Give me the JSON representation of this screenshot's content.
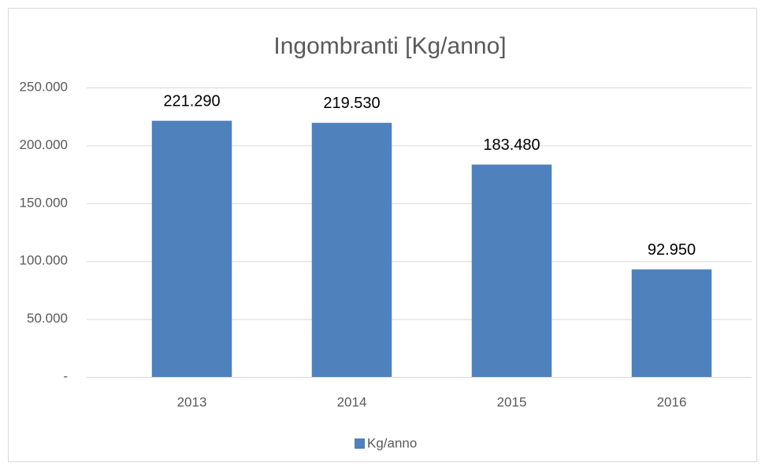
{
  "chart_data": {
    "type": "bar",
    "title": "Ingombranti [Kg/anno]",
    "categories": [
      "2013",
      "2014",
      "2015",
      "2016"
    ],
    "series": [
      {
        "name": "Kg/anno",
        "color": "#4f81bd",
        "values": [
          221290,
          219530,
          183480,
          92950
        ],
        "value_labels": [
          "221.290",
          "219.530",
          "183.480",
          "92.950"
        ]
      }
    ],
    "ylim": [
      0,
      250000
    ],
    "yticks": [
      {
        "value": 0,
        "label": "-"
      },
      {
        "value": 50000,
        "label": "50.000"
      },
      {
        "value": 100000,
        "label": "100.000"
      },
      {
        "value": 150000,
        "label": "150.000"
      },
      {
        "value": 200000,
        "label": "200.000"
      },
      {
        "value": 250000,
        "label": "250.000"
      }
    ],
    "grid": true,
    "legend": "bottom"
  }
}
